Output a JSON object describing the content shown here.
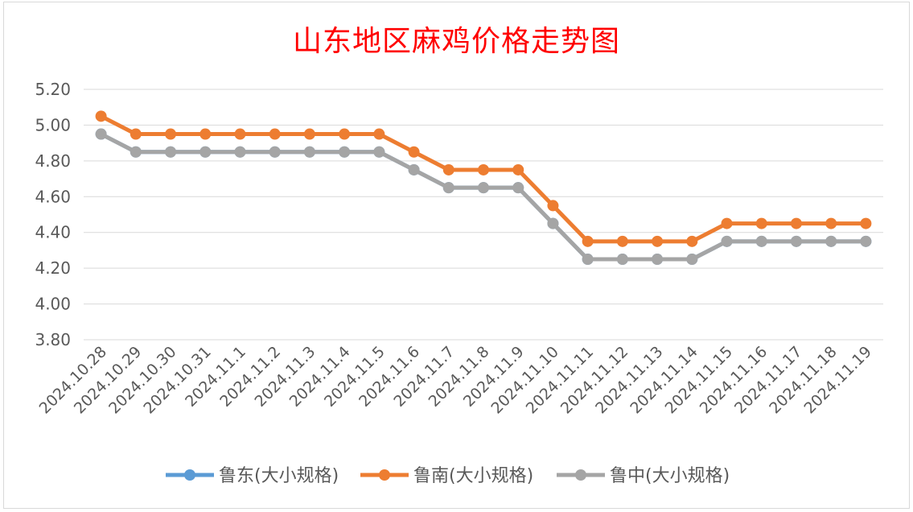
{
  "chart_data": {
    "type": "line",
    "title": "山东地区麻鸡价格走势图",
    "xlabel": "",
    "ylabel": "",
    "ylim": [
      3.8,
      5.2
    ],
    "yticks": [
      "5.20",
      "5.00",
      "4.80",
      "4.60",
      "4.40",
      "4.20",
      "4.00",
      "3.80"
    ],
    "grid": true,
    "legend_position": "bottom",
    "categories": [
      "2024.10.28",
      "2024.10.29",
      "2024.10.30",
      "2024.10.31",
      "2024.11.1",
      "2024.11.2",
      "2024.11.3",
      "2024.11.4",
      "2024.11.5",
      "2024.11.6",
      "2024.11.7",
      "2024.11.8",
      "2024.11.9",
      "2024.11.10",
      "2024.11.11",
      "2024.11.12",
      "2024.11.13",
      "2024.11.14",
      "2024.11.15",
      "2024.11.16",
      "2024.11.17",
      "2024.11.18",
      "2024.11.19"
    ],
    "series": [
      {
        "name": "鲁东(大小规格)",
        "color": "#5b9bd5",
        "values": [
          4.95,
          4.85,
          4.85,
          4.85,
          4.85,
          4.85,
          4.85,
          4.85,
          4.85,
          4.75,
          4.65,
          4.65,
          4.65,
          4.45,
          4.25,
          4.25,
          4.25,
          4.25,
          4.35,
          4.35,
          4.35,
          4.35,
          4.35
        ]
      },
      {
        "name": "鲁南(大小规格)",
        "color": "#ed7d31",
        "values": [
          5.05,
          4.95,
          4.95,
          4.95,
          4.95,
          4.95,
          4.95,
          4.95,
          4.95,
          4.85,
          4.75,
          4.75,
          4.75,
          4.55,
          4.35,
          4.35,
          4.35,
          4.35,
          4.45,
          4.45,
          4.45,
          4.45,
          4.45
        ]
      },
      {
        "name": "鲁中(大小规格)",
        "color": "#a5a5a5",
        "values": [
          4.95,
          4.85,
          4.85,
          4.85,
          4.85,
          4.85,
          4.85,
          4.85,
          4.85,
          4.75,
          4.65,
          4.65,
          4.65,
          4.45,
          4.25,
          4.25,
          4.25,
          4.25,
          4.35,
          4.35,
          4.35,
          4.35,
          4.35
        ]
      }
    ]
  }
}
